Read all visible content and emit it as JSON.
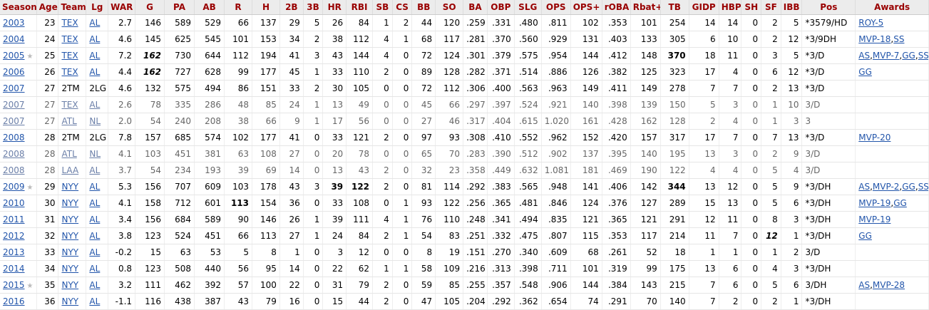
{
  "columns": [
    "Season",
    "Age",
    "Team",
    "Lg",
    "WAR",
    "G",
    "PA",
    "AB",
    "R",
    "H",
    "2B",
    "3B",
    "HR",
    "RBI",
    "SB",
    "CS",
    "BB",
    "SO",
    "BA",
    "OBP",
    "SLG",
    "OPS",
    "OPS+",
    "rOBA",
    "Rbat+",
    "TB",
    "GIDP",
    "HBP",
    "SH",
    "SF",
    "IBB",
    "Pos",
    "Awards"
  ],
  "star_glyph": "★",
  "rows": [
    {
      "season": "2003",
      "star": false,
      "team": "TEX",
      "team_link": true,
      "lg": "AL",
      "lg_link": true,
      "partial": false,
      "awards": [
        "ROY-5"
      ],
      "bold": [],
      "bi": [],
      "vals": [
        "23",
        "TEX",
        "AL",
        "2.7",
        "146",
        "589",
        "529",
        "66",
        "137",
        "29",
        "5",
        "26",
        "84",
        "1",
        "2",
        "44",
        "120",
        ".259",
        ".331",
        ".480",
        ".811",
        "102",
        ".353",
        "101",
        "254",
        "14",
        "14",
        "0",
        "2",
        "5",
        "*3579/HD"
      ]
    },
    {
      "season": "2004",
      "star": false,
      "team": "TEX",
      "team_link": true,
      "lg": "AL",
      "lg_link": true,
      "partial": false,
      "awards": [
        "MVP-18",
        "SS"
      ],
      "bold": [],
      "bi": [],
      "vals": [
        "24",
        "TEX",
        "AL",
        "4.6",
        "145",
        "625",
        "545",
        "101",
        "153",
        "34",
        "2",
        "38",
        "112",
        "4",
        "1",
        "68",
        "117",
        ".281",
        ".370",
        ".560",
        ".929",
        "131",
        ".403",
        "133",
        "305",
        "6",
        "10",
        "0",
        "2",
        "12",
        "*3/9DH"
      ]
    },
    {
      "season": "2005",
      "star": true,
      "team": "TEX",
      "team_link": true,
      "lg": "AL",
      "lg_link": true,
      "partial": false,
      "awards": [
        "AS",
        "MVP-7",
        "GG",
        "SS"
      ],
      "bold": [
        "TB"
      ],
      "bi": [
        "G"
      ],
      "vals": [
        "25",
        "TEX",
        "AL",
        "7.2",
        "162",
        "730",
        "644",
        "112",
        "194",
        "41",
        "3",
        "43",
        "144",
        "4",
        "0",
        "72",
        "124",
        ".301",
        ".379",
        ".575",
        ".954",
        "144",
        ".412",
        "148",
        "370",
        "18",
        "11",
        "0",
        "3",
        "5",
        "*3/D"
      ]
    },
    {
      "season": "2006",
      "star": false,
      "team": "TEX",
      "team_link": true,
      "lg": "AL",
      "lg_link": true,
      "partial": false,
      "awards": [
        "GG"
      ],
      "bold": [],
      "bi": [
        "G"
      ],
      "vals": [
        "26",
        "TEX",
        "AL",
        "4.4",
        "162",
        "727",
        "628",
        "99",
        "177",
        "45",
        "1",
        "33",
        "110",
        "2",
        "0",
        "89",
        "128",
        ".282",
        ".371",
        ".514",
        ".886",
        "126",
        ".382",
        "125",
        "323",
        "17",
        "4",
        "0",
        "6",
        "12",
        "*3/D"
      ]
    },
    {
      "season": "2007",
      "star": false,
      "team": "2TM",
      "team_link": false,
      "lg": "2LG",
      "lg_link": false,
      "partial": false,
      "awards": [],
      "bold": [],
      "bi": [],
      "vals": [
        "27",
        "2TM",
        "2LG",
        "4.6",
        "132",
        "575",
        "494",
        "86",
        "151",
        "33",
        "2",
        "30",
        "105",
        "0",
        "0",
        "72",
        "112",
        ".306",
        ".400",
        ".563",
        ".963",
        "149",
        ".411",
        "149",
        "278",
        "7",
        "7",
        "0",
        "2",
        "13",
        "*3/D"
      ]
    },
    {
      "season": "2007",
      "star": false,
      "team": "TEX",
      "team_link": true,
      "lg": "AL",
      "lg_link": true,
      "partial": true,
      "awards": [],
      "bold": [],
      "bi": [],
      "vals": [
        "27",
        "TEX",
        "AL",
        "2.6",
        "78",
        "335",
        "286",
        "48",
        "85",
        "24",
        "1",
        "13",
        "49",
        "0",
        "0",
        "45",
        "66",
        ".297",
        ".397",
        ".524",
        ".921",
        "140",
        ".398",
        "139",
        "150",
        "5",
        "3",
        "0",
        "1",
        "10",
        "3/D"
      ]
    },
    {
      "season": "2007",
      "star": false,
      "team": "ATL",
      "team_link": true,
      "lg": "NL",
      "lg_link": true,
      "partial": true,
      "awards": [],
      "bold": [],
      "bi": [],
      "vals": [
        "27",
        "ATL",
        "NL",
        "2.0",
        "54",
        "240",
        "208",
        "38",
        "66",
        "9",
        "1",
        "17",
        "56",
        "0",
        "0",
        "27",
        "46",
        ".317",
        ".404",
        ".615",
        "1.020",
        "161",
        ".428",
        "162",
        "128",
        "2",
        "4",
        "0",
        "1",
        "3",
        "3"
      ]
    },
    {
      "season": "2008",
      "star": false,
      "team": "2TM",
      "team_link": false,
      "lg": "2LG",
      "lg_link": false,
      "partial": false,
      "awards": [
        "MVP-20"
      ],
      "bold": [],
      "bi": [],
      "vals": [
        "28",
        "2TM",
        "2LG",
        "7.8",
        "157",
        "685",
        "574",
        "102",
        "177",
        "41",
        "0",
        "33",
        "121",
        "2",
        "0",
        "97",
        "93",
        ".308",
        ".410",
        ".552",
        ".962",
        "152",
        ".420",
        "157",
        "317",
        "17",
        "7",
        "0",
        "7",
        "13",
        "*3/D"
      ]
    },
    {
      "season": "2008",
      "star": false,
      "team": "ATL",
      "team_link": true,
      "lg": "NL",
      "lg_link": true,
      "partial": true,
      "awards": [],
      "bold": [],
      "bi": [],
      "vals": [
        "28",
        "ATL",
        "NL",
        "4.1",
        "103",
        "451",
        "381",
        "63",
        "108",
        "27",
        "0",
        "20",
        "78",
        "0",
        "0",
        "65",
        "70",
        ".283",
        ".390",
        ".512",
        ".902",
        "137",
        ".395",
        "140",
        "195",
        "13",
        "3",
        "0",
        "2",
        "9",
        "3/D"
      ]
    },
    {
      "season": "2008",
      "star": false,
      "team": "LAA",
      "team_link": true,
      "lg": "AL",
      "lg_link": true,
      "partial": true,
      "awards": [],
      "bold": [],
      "bi": [],
      "vals": [
        "28",
        "LAA",
        "AL",
        "3.7",
        "54",
        "234",
        "193",
        "39",
        "69",
        "14",
        "0",
        "13",
        "43",
        "2",
        "0",
        "32",
        "23",
        ".358",
        ".449",
        ".632",
        "1.081",
        "181",
        ".469",
        "190",
        "122",
        "4",
        "4",
        "0",
        "5",
        "4",
        "3/D"
      ]
    },
    {
      "season": "2009",
      "star": true,
      "team": "NYY",
      "team_link": true,
      "lg": "AL",
      "lg_link": true,
      "partial": false,
      "awards": [
        "AS",
        "MVP-2",
        "GG",
        "SS"
      ],
      "bold": [
        "HR",
        "RBI",
        "TB"
      ],
      "bi": [],
      "vals": [
        "29",
        "NYY",
        "AL",
        "5.3",
        "156",
        "707",
        "609",
        "103",
        "178",
        "43",
        "3",
        "39",
        "122",
        "2",
        "0",
        "81",
        "114",
        ".292",
        ".383",
        ".565",
        ".948",
        "141",
        ".406",
        "142",
        "344",
        "13",
        "12",
        "0",
        "5",
        "9",
        "*3/DH"
      ]
    },
    {
      "season": "2010",
      "star": false,
      "team": "NYY",
      "team_link": true,
      "lg": "AL",
      "lg_link": true,
      "partial": false,
      "awards": [
        "MVP-19",
        "GG"
      ],
      "bold": [
        "R"
      ],
      "bi": [],
      "vals": [
        "30",
        "NYY",
        "AL",
        "4.1",
        "158",
        "712",
        "601",
        "113",
        "154",
        "36",
        "0",
        "33",
        "108",
        "0",
        "1",
        "93",
        "122",
        ".256",
        ".365",
        ".481",
        ".846",
        "124",
        ".376",
        "127",
        "289",
        "15",
        "13",
        "0",
        "5",
        "6",
        "*3/DH"
      ]
    },
    {
      "season": "2011",
      "star": false,
      "team": "NYY",
      "team_link": true,
      "lg": "AL",
      "lg_link": true,
      "partial": false,
      "awards": [
        "MVP-19"
      ],
      "bold": [],
      "bi": [],
      "vals": [
        "31",
        "NYY",
        "AL",
        "3.4",
        "156",
        "684",
        "589",
        "90",
        "146",
        "26",
        "1",
        "39",
        "111",
        "4",
        "1",
        "76",
        "110",
        ".248",
        ".341",
        ".494",
        ".835",
        "121",
        ".365",
        "121",
        "291",
        "12",
        "11",
        "0",
        "8",
        "3",
        "*3/DH"
      ]
    },
    {
      "season": "2012",
      "star": false,
      "team": "NYY",
      "team_link": true,
      "lg": "AL",
      "lg_link": true,
      "partial": false,
      "awards": [
        "GG"
      ],
      "bold": [],
      "bi": [
        "SF"
      ],
      "vals": [
        "32",
        "NYY",
        "AL",
        "3.8",
        "123",
        "524",
        "451",
        "66",
        "113",
        "27",
        "1",
        "24",
        "84",
        "2",
        "1",
        "54",
        "83",
        ".251",
        ".332",
        ".475",
        ".807",
        "115",
        ".353",
        "117",
        "214",
        "11",
        "7",
        "0",
        "12",
        "1",
        "*3/DH"
      ]
    },
    {
      "season": "2013",
      "star": false,
      "team": "NYY",
      "team_link": true,
      "lg": "AL",
      "lg_link": true,
      "partial": false,
      "awards": [],
      "bold": [],
      "bi": [],
      "vals": [
        "33",
        "NYY",
        "AL",
        "-0.2",
        "15",
        "63",
        "53",
        "5",
        "8",
        "1",
        "0",
        "3",
        "12",
        "0",
        "0",
        "8",
        "19",
        ".151",
        ".270",
        ".340",
        ".609",
        "68",
        ".261",
        "52",
        "18",
        "1",
        "1",
        "0",
        "1",
        "2",
        "3/D"
      ]
    },
    {
      "season": "2014",
      "star": false,
      "team": "NYY",
      "team_link": true,
      "lg": "AL",
      "lg_link": true,
      "partial": false,
      "awards": [],
      "bold": [],
      "bi": [],
      "vals": [
        "34",
        "NYY",
        "AL",
        "0.8",
        "123",
        "508",
        "440",
        "56",
        "95",
        "14",
        "0",
        "22",
        "62",
        "1",
        "1",
        "58",
        "109",
        ".216",
        ".313",
        ".398",
        ".711",
        "101",
        ".319",
        "99",
        "175",
        "13",
        "6",
        "0",
        "4",
        "3",
        "*3/DH"
      ]
    },
    {
      "season": "2015",
      "star": true,
      "team": "NYY",
      "team_link": true,
      "lg": "AL",
      "lg_link": true,
      "partial": false,
      "awards": [
        "AS",
        "MVP-28"
      ],
      "bold": [],
      "bi": [],
      "vals": [
        "35",
        "NYY",
        "AL",
        "3.2",
        "111",
        "462",
        "392",
        "57",
        "100",
        "22",
        "0",
        "31",
        "79",
        "2",
        "0",
        "59",
        "85",
        ".255",
        ".357",
        ".548",
        ".906",
        "144",
        ".384",
        "143",
        "215",
        "7",
        "6",
        "0",
        "5",
        "6",
        "3/DH"
      ]
    },
    {
      "season": "2016",
      "star": false,
      "team": "NYY",
      "team_link": true,
      "lg": "AL",
      "lg_link": true,
      "partial": false,
      "awards": [],
      "bold": [],
      "bi": [],
      "vals": [
        "36",
        "NYY",
        "AL",
        "-1.1",
        "116",
        "438",
        "387",
        "43",
        "79",
        "16",
        "0",
        "15",
        "44",
        "2",
        "0",
        "47",
        "105",
        ".204",
        ".292",
        ".362",
        ".654",
        "74",
        ".291",
        "70",
        "140",
        "7",
        "2",
        "0",
        "2",
        "1",
        "*3/DH"
      ]
    }
  ]
}
